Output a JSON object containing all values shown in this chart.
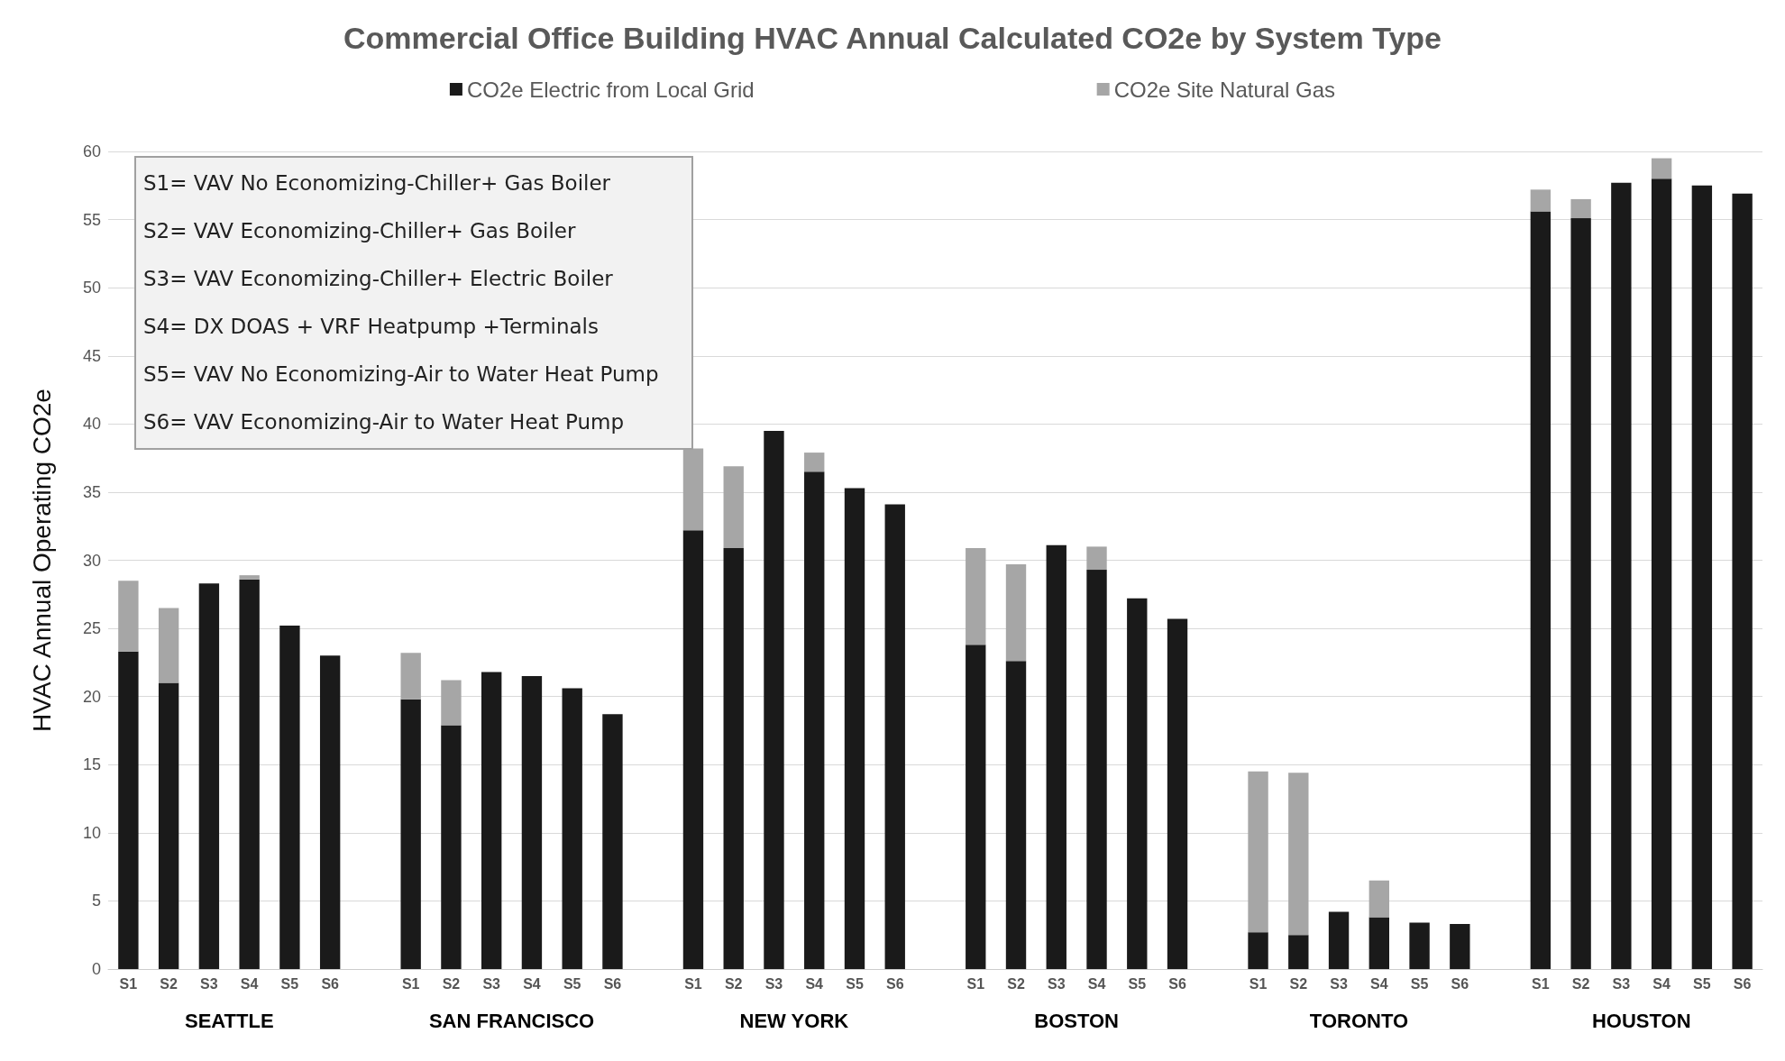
{
  "chart_data": {
    "type": "bar",
    "stacked": true,
    "title": "Commercial Office Building HVAC Annual Calculated CO2e by System Type",
    "ylabel": "HVAC Annual Operating CO2e",
    "categories": [
      "S1",
      "S2",
      "S3",
      "S4",
      "S5",
      "S6",
      null,
      "S1",
      "S2",
      "S3",
      "S4",
      "S5",
      "S6",
      null,
      "S1",
      "S2",
      "S3",
      "S4",
      "S5",
      "S6",
      null,
      "S1",
      "S2",
      "S3",
      "S4",
      "S5",
      "S6",
      null,
      "S1",
      "S2",
      "S3",
      "S4",
      "S5",
      "S6",
      null,
      "S1",
      "S2",
      "S3",
      "S4",
      "S5",
      "S6"
    ],
    "series": [
      {
        "name": "CO2e Electric from Local Grid",
        "color": "#1a1a1a",
        "values": [
          23.3,
          21.0,
          28.3,
          28.6,
          25.2,
          23.0,
          null,
          19.8,
          17.9,
          21.8,
          21.5,
          20.6,
          18.7,
          null,
          32.2,
          30.9,
          39.5,
          36.5,
          35.3,
          34.1,
          null,
          23.8,
          22.6,
          31.1,
          29.3,
          27.2,
          25.7,
          null,
          2.7,
          2.5,
          4.2,
          3.8,
          3.4,
          3.3,
          null,
          55.6,
          55.1,
          57.7,
          58.0,
          57.5,
          56.9
        ]
      },
      {
        "name": "CO2e Site Natural Gas",
        "color": "#a6a6a6",
        "values": [
          5.2,
          5.5,
          0,
          0.3,
          0,
          0,
          null,
          3.4,
          3.3,
          0,
          0,
          0,
          0,
          null,
          6.0,
          6.0,
          0,
          1.4,
          0,
          0,
          null,
          7.1,
          7.1,
          0,
          1.7,
          0,
          0,
          null,
          11.8,
          11.9,
          0,
          2.7,
          0,
          0,
          null,
          1.6,
          1.4,
          0,
          1.5,
          0,
          0
        ]
      }
    ],
    "ylim": [
      0,
      60
    ],
    "yticks": [
      0,
      5,
      10,
      15,
      20,
      25,
      30,
      35,
      40,
      45,
      50,
      55,
      60
    ],
    "grid": "y",
    "legend": "top",
    "annotations": [
      "SEATTLE",
      "SAN FRANCISCO",
      "NEW YORK",
      "BOSTON",
      "TORONTO",
      "HOUSTON",
      "S1= VAV No Economizing-Chiller+ Gas Boiler",
      "S2= VAV Economizing-Chiller+ Gas Boiler",
      "S3= VAV Economizing-Chiller+ Electric Boiler",
      "S4= DX DOAS + VRF Heatpump +Terminals",
      "S5= VAV No Economizing-Air to Water Heat Pump",
      "S6= VAV Economizing-Air to Water Heat Pump"
    ]
  }
}
